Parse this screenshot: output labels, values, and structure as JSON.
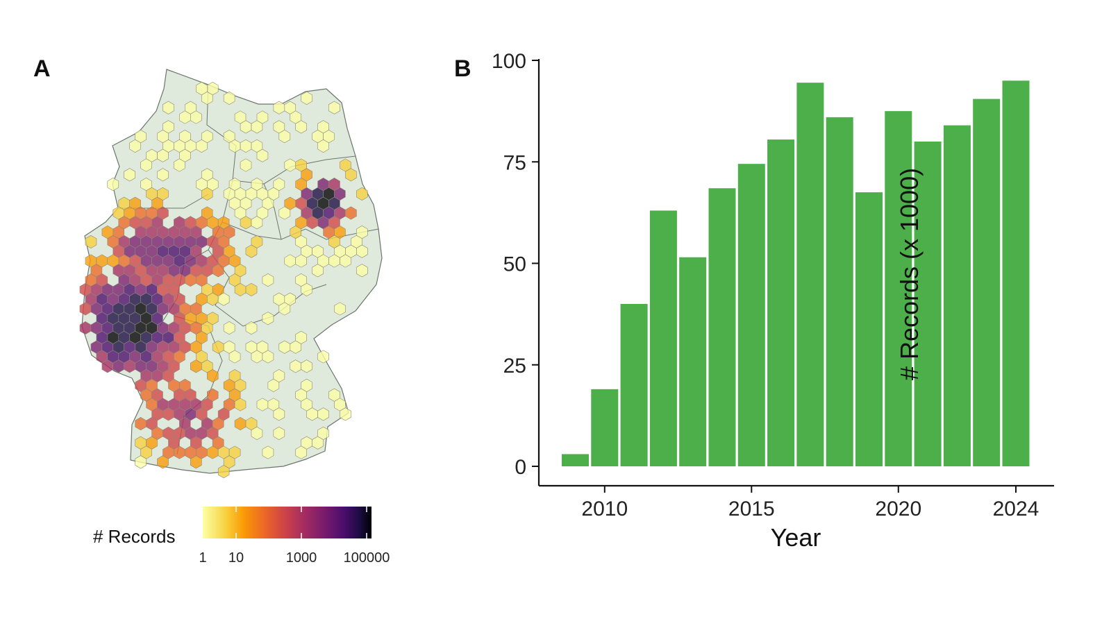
{
  "panels": {
    "a_label": "A",
    "b_label": "B"
  },
  "legend": {
    "title": "# Records",
    "ticks": [
      "1",
      "10",
      "1000",
      "100000"
    ],
    "colors": [
      "#fcffa4",
      "#f7d13d",
      "#fb9b06",
      "#ed6925",
      "#cf4446",
      "#a52c60",
      "#781c6d",
      "#4a0c6b",
      "#1b0c41",
      "#000004"
    ]
  },
  "map": {
    "land_color": "#dfe9dc",
    "border_color": "#6b756b",
    "hotspots_described": [
      "west (dense, dark purple)",
      "Berlin area (dark purple)"
    ]
  },
  "chart_data": {
    "type": "bar",
    "categories": [
      2009,
      2010,
      2011,
      2012,
      2013,
      2014,
      2015,
      2016,
      2017,
      2018,
      2019,
      2020,
      2021,
      2022,
      2023,
      2024
    ],
    "values": [
      3,
      19,
      40,
      63,
      51.5,
      68.5,
      74.5,
      80.5,
      94.5,
      86,
      67.5,
      87.5,
      80,
      84,
      90.5,
      95
    ],
    "xlabel": "Year",
    "ylabel": "# Records (x 1000)",
    "ylim": [
      0,
      100
    ],
    "yticks": [
      0,
      25,
      50,
      75,
      100
    ],
    "xticks": [
      2010,
      2015,
      2020,
      2024
    ],
    "color": "#4caf4a",
    "grid": false
  }
}
